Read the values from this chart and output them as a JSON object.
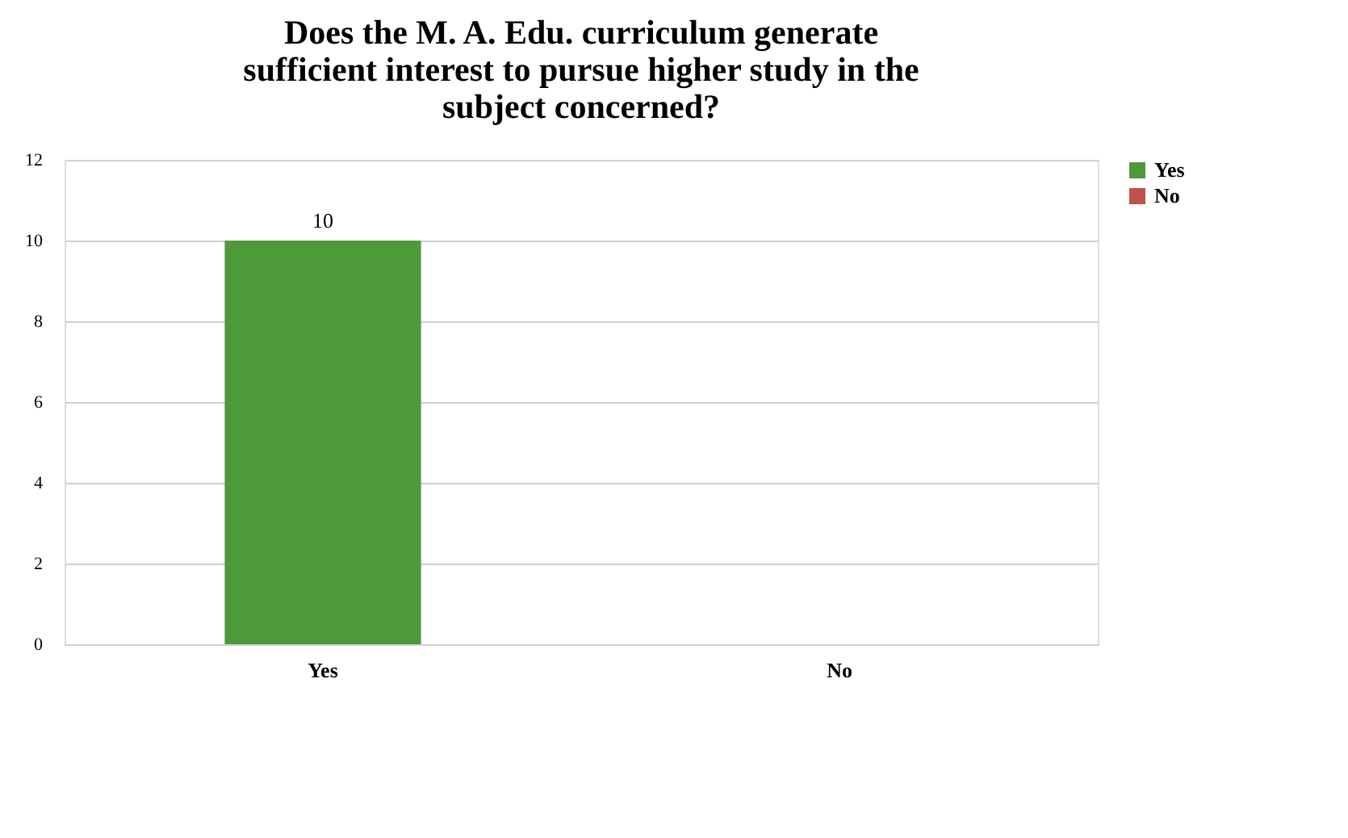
{
  "chart_data": {
    "type": "bar",
    "title": [
      "Does the M. A. Edu. curriculum generate",
      "sufficient interest to pursue higher study in the",
      "subject concerned?"
    ],
    "categories": [
      "Yes",
      "No"
    ],
    "series": [
      {
        "name": "Yes",
        "color": "#4e9a3a",
        "values": [
          10,
          null
        ],
        "value_labels": [
          "10",
          null
        ]
      },
      {
        "name": "No",
        "color": "#c0504d",
        "values": [
          null,
          0
        ],
        "value_labels": [
          null,
          null
        ]
      }
    ],
    "ylim": [
      0,
      12
    ],
    "yticks": [
      0,
      2,
      4,
      6,
      8,
      10,
      12
    ],
    "grid": "y",
    "legend": "right"
  }
}
